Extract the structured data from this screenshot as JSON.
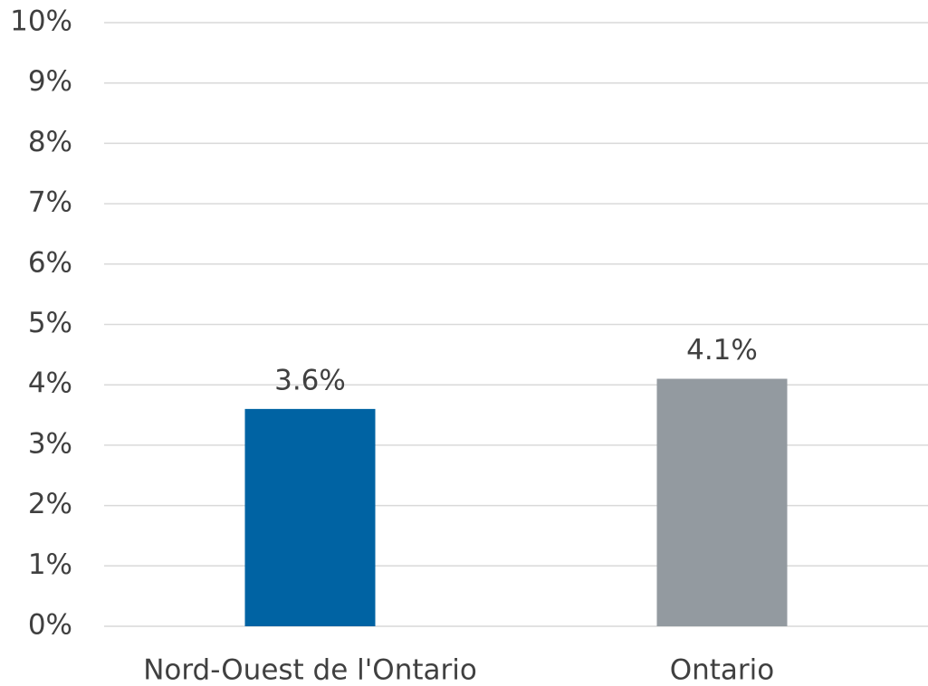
{
  "chart_data": {
    "type": "bar",
    "categories": [
      "Nord-Ouest de l'Ontario",
      "Ontario"
    ],
    "values": [
      3.6,
      4.1
    ],
    "value_labels": [
      "3.6%",
      "4.1%"
    ],
    "colors": [
      "#0063a3",
      "#939aa0"
    ],
    "ylim": [
      0,
      10
    ],
    "yticks": [
      {
        "value": 0,
        "label": "0%"
      },
      {
        "value": 1,
        "label": "1%"
      },
      {
        "value": 2,
        "label": "2%"
      },
      {
        "value": 3,
        "label": "3%"
      },
      {
        "value": 4,
        "label": "4%"
      },
      {
        "value": 5,
        "label": "5%"
      },
      {
        "value": 6,
        "label": "6%"
      },
      {
        "value": 7,
        "label": "7%"
      },
      {
        "value": 8,
        "label": "8%"
      },
      {
        "value": 9,
        "label": "9%"
      },
      {
        "value": 10,
        "label": "10%"
      }
    ],
    "grid": true
  }
}
